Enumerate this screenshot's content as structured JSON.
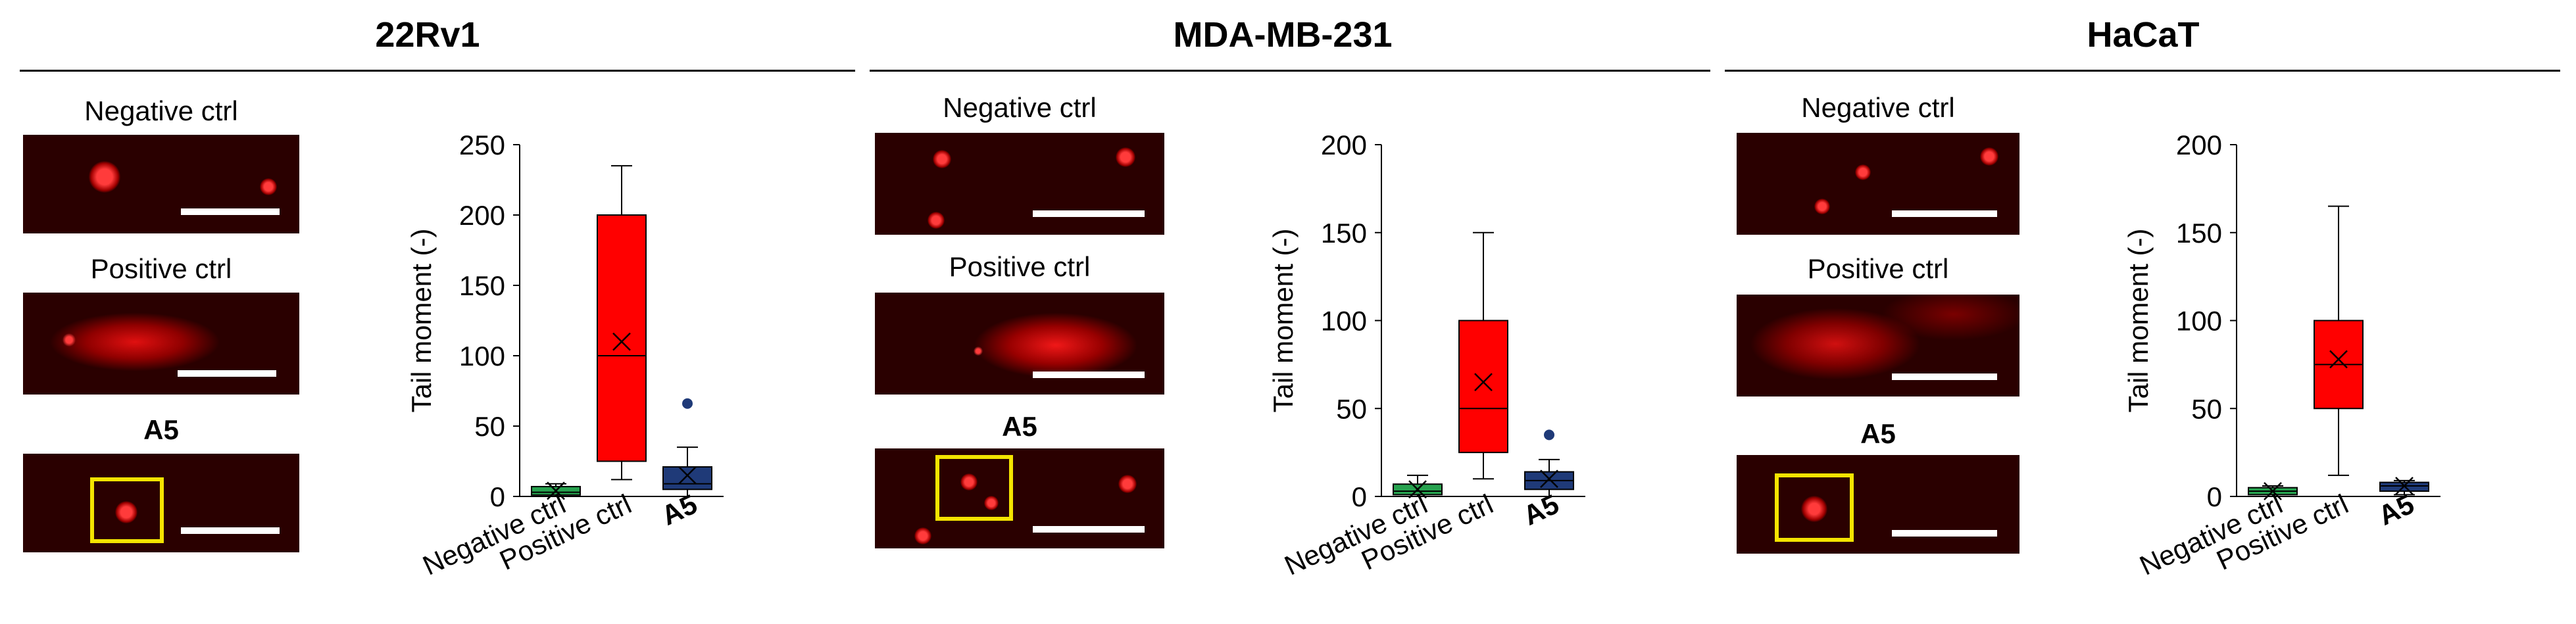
{
  "colors": {
    "negative": "#27a24f",
    "positive": "#ff0000",
    "a5": "#1f3a78",
    "roi": "#f4e400",
    "outlier": "#1f3a78"
  },
  "panels": [
    {
      "title": "22Rv1",
      "micro_labels": {
        "negative": "Negative ctrl",
        "positive": "Positive ctrl",
        "a5": "A5"
      }
    },
    {
      "title": "MDA-MB-231",
      "micro_labels": {
        "negative": "Negative ctrl",
        "positive": "Positive ctrl",
        "a5": "A5"
      }
    },
    {
      "title": "HaCaT",
      "micro_labels": {
        "negative": "Negative ctrl",
        "positive": "Positive ctrl",
        "a5": "A5"
      }
    }
  ],
  "chart_data": [
    {
      "type": "box",
      "panel": "22Rv1",
      "ylabel": "Tail moment (-)",
      "ylim": [
        0,
        250
      ],
      "yticks": [
        0,
        50,
        100,
        150,
        200,
        250
      ],
      "categories": [
        "Negative ctrl",
        "Positive ctrl",
        "A5"
      ],
      "boxes": [
        {
          "name": "Negative ctrl",
          "min": 0,
          "q1": 1,
          "median": 3,
          "q3": 7,
          "max": 9,
          "mean": 4,
          "outliers": []
        },
        {
          "name": "Positive ctrl",
          "min": 12,
          "q1": 25,
          "median": 100,
          "q3": 200,
          "max": 235,
          "mean": 110,
          "outliers": []
        },
        {
          "name": "A5",
          "min": 0,
          "q1": 5,
          "median": 9,
          "q3": 21,
          "max": 35,
          "mean": 15,
          "outliers": [
            66
          ]
        }
      ]
    },
    {
      "type": "box",
      "panel": "MDA-MB-231",
      "ylabel": "Tail moment (-)",
      "ylim": [
        0,
        200
      ],
      "yticks": [
        0,
        50,
        100,
        150,
        200
      ],
      "categories": [
        "Negative ctrl",
        "Positive ctrl",
        "A5"
      ],
      "boxes": [
        {
          "name": "Negative ctrl",
          "min": 0,
          "q1": 1,
          "median": 3,
          "q3": 7,
          "max": 12,
          "mean": 4,
          "outliers": []
        },
        {
          "name": "Positive ctrl",
          "min": 10,
          "q1": 25,
          "median": 50,
          "q3": 100,
          "max": 150,
          "mean": 65,
          "outliers": []
        },
        {
          "name": "A5",
          "min": 0,
          "q1": 4,
          "median": 9,
          "q3": 14,
          "max": 21,
          "mean": 10,
          "outliers": [
            35
          ]
        }
      ]
    },
    {
      "type": "box",
      "panel": "HaCaT",
      "ylabel": "Tail moment (-)",
      "ylim": [
        0,
        200
      ],
      "yticks": [
        0,
        50,
        100,
        150,
        200
      ],
      "categories": [
        "Negative ctrl",
        "Positive ctrl",
        "A5"
      ],
      "boxes": [
        {
          "name": "Negative ctrl",
          "min": 0,
          "q1": 1,
          "median": 3,
          "q3": 5,
          "max": 6,
          "mean": 3,
          "outliers": []
        },
        {
          "name": "Positive ctrl",
          "min": 12,
          "q1": 50,
          "median": 75,
          "q3": 100,
          "max": 165,
          "mean": 78,
          "outliers": []
        },
        {
          "name": "A5",
          "min": 1,
          "q1": 3,
          "median": 6,
          "q3": 8,
          "max": 9,
          "mean": 6,
          "outliers": []
        }
      ]
    }
  ]
}
